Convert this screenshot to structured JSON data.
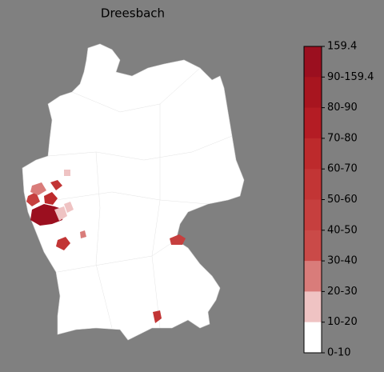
{
  "title": "Dreesbach",
  "legend": {
    "labels": [
      "159.4",
      "90-159.4",
      "80-90",
      "70-80",
      "60-70",
      "50-60",
      "40-50",
      "30-40",
      "20-30",
      "10-20",
      "0-10"
    ],
    "colors": [
      "#9b0f1f",
      "#a8151f",
      "#b41c24",
      "#bd2a2c",
      "#c23535",
      "#c63f3e",
      "#ca4a48",
      "#d97c7a",
      "#efc3c3",
      "#ffffff"
    ]
  }
}
